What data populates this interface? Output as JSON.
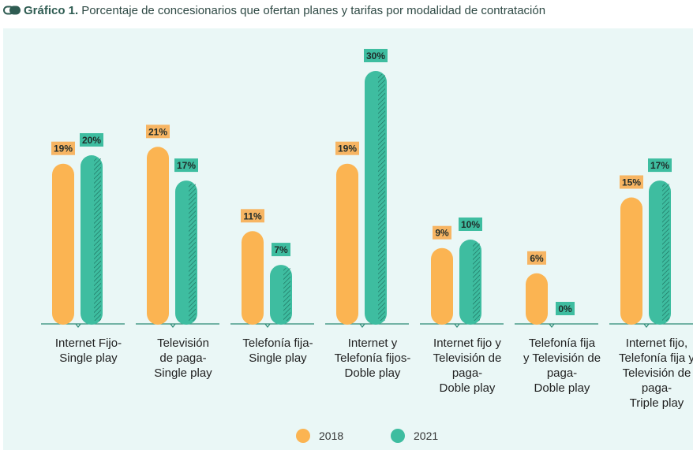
{
  "header": {
    "title_bold": "Gráfico 1.",
    "title_rest": "Porcentaje de concesionarios que ofertan planes y tarifas por modalidad de contratación"
  },
  "colors": {
    "series_2018": "#fbb452",
    "series_2021": "#3ebda0",
    "label_bg_2018": "#f7b563",
    "label_bg_2021": "#3ebda0",
    "panel_bg": "#eaf7f6",
    "baseline": "#2a8a75"
  },
  "chart_data": {
    "type": "bar",
    "title": "",
    "categories": [
      [
        "Internet Fijo-",
        "Single play"
      ],
      [
        "Televisión",
        "de paga-",
        "Single play"
      ],
      [
        "Telefonía fija-",
        "Single play"
      ],
      [
        "Internet y",
        "Telefonía fijos-",
        "Doble play"
      ],
      [
        "Internet fijo y",
        "Televisión de",
        "paga-",
        "Doble play"
      ],
      [
        "Telefonía fija",
        "y Televisión de",
        "paga-",
        "Doble play"
      ],
      [
        "Internet fijo,",
        "Telefonía fija y",
        "Televisión de",
        "paga-",
        "Triple play"
      ]
    ],
    "series": [
      {
        "name": "2018",
        "values": [
          19,
          21,
          11,
          19,
          9,
          6,
          15
        ],
        "labels": [
          "19%",
          "21%",
          "11%",
          "19%",
          "9%",
          "6%",
          "15%"
        ]
      },
      {
        "name": "2021",
        "values": [
          20,
          17,
          7,
          30,
          10,
          0,
          17
        ],
        "labels": [
          "20%",
          "17%",
          "7%",
          "30%",
          "10%",
          "0%",
          "17%"
        ]
      }
    ],
    "ylim": [
      0,
      30
    ],
    "grid": false,
    "legend": "bottom-center",
    "xlabel": "",
    "ylabel": ""
  }
}
